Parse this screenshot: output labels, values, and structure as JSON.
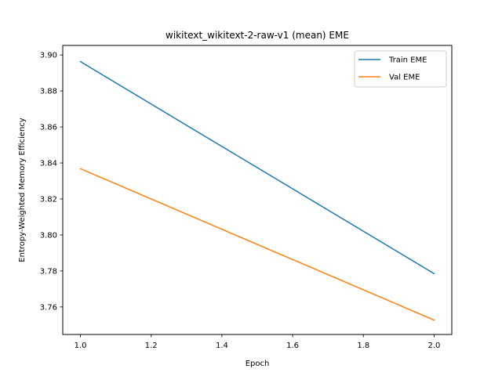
{
  "chart_data": {
    "type": "line",
    "title": "wikitext_wikitext-2-raw-v1 (mean) EME",
    "xlabel": "Epoch",
    "ylabel": "Entropy-Weighted Memory Efficiency",
    "xlim": [
      0.95,
      2.05
    ],
    "ylim": [
      3.7447,
      3.9053
    ],
    "xticks": [
      1.0,
      1.2,
      1.4,
      1.6,
      1.8,
      2.0
    ],
    "xtick_labels": [
      "1.0",
      "1.2",
      "1.4",
      "1.6",
      "1.8",
      "2.0"
    ],
    "yticks": [
      3.76,
      3.78,
      3.8,
      3.82,
      3.84,
      3.86,
      3.88,
      3.9
    ],
    "ytick_labels": [
      "3.76",
      "3.78",
      "3.80",
      "3.82",
      "3.84",
      "3.86",
      "3.88",
      "3.90"
    ],
    "grid": false,
    "legend_position": "top-right",
    "series": [
      {
        "name": "Train EME",
        "color": "#1f77b4",
        "x": [
          1.0,
          2.0
        ],
        "y": [
          3.8963,
          3.7785
        ]
      },
      {
        "name": "Val EME",
        "color": "#ff7f0e",
        "x": [
          1.0,
          2.0
        ],
        "y": [
          3.8368,
          3.7527
        ]
      }
    ]
  }
}
